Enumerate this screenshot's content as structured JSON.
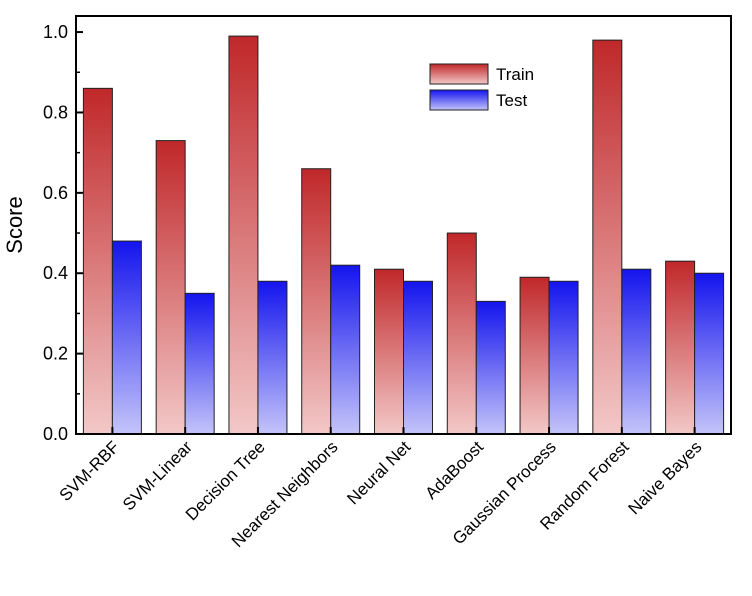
{
  "chart_data": {
    "type": "bar",
    "title": "",
    "xlabel": "",
    "ylabel": "Score",
    "ylim": [
      0,
      1.04
    ],
    "yticks": [
      "0.0",
      "0.2",
      "0.4",
      "0.6",
      "0.8",
      "1.0"
    ],
    "categories": [
      "SVM-RBF",
      "SVM-Linear",
      "Decision Tree",
      "Nearest Neighbors",
      "Neural Net",
      "AdaBoost",
      "Gaussian Process",
      "Random Forest",
      "Naive Bayes"
    ],
    "series": [
      {
        "name": "Train",
        "color_top": "#c0282a",
        "color_bottom": "#f3c8c8",
        "values": [
          0.86,
          0.73,
          0.99,
          0.66,
          0.41,
          0.5,
          0.39,
          0.98,
          0.43
        ]
      },
      {
        "name": "Test",
        "color_top": "#1414ee",
        "color_bottom": "#c4c4fa",
        "values": [
          0.48,
          0.35,
          0.38,
          0.42,
          0.38,
          0.33,
          0.38,
          0.41,
          0.4
        ]
      }
    ],
    "legend_position": "top-right",
    "grid": false
  }
}
